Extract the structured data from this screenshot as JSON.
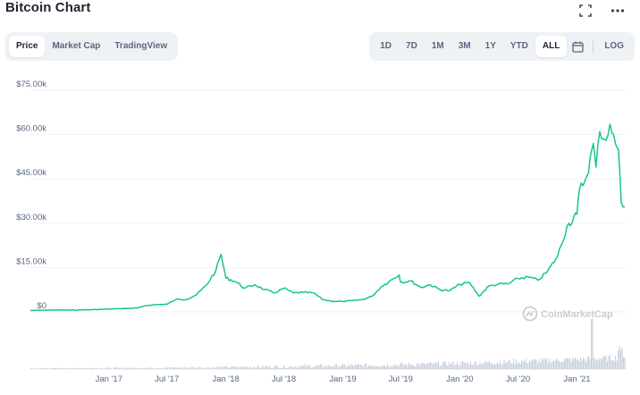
{
  "header": {
    "title": "Bitcoin Chart"
  },
  "tabs": [
    {
      "label": "Price",
      "active": true
    },
    {
      "label": "Market Cap",
      "active": false
    },
    {
      "label": "TradingView",
      "active": false
    }
  ],
  "ranges": [
    {
      "label": "1D",
      "active": false
    },
    {
      "label": "7D",
      "active": false
    },
    {
      "label": "1M",
      "active": false
    },
    {
      "label": "3M",
      "active": false
    },
    {
      "label": "1Y",
      "active": false
    },
    {
      "label": "YTD",
      "active": false
    },
    {
      "label": "ALL",
      "active": true
    }
  ],
  "log_label": "LOG",
  "watermark": "CoinMarketCap",
  "icons": {
    "fullscreen": "fullscreen-icon",
    "more": "more-icon",
    "calendar": "calendar-icon",
    "logo": "coinmarketcap-logo-icon"
  },
  "colors": {
    "line": "#16c784",
    "volume": "#c8d0dc",
    "grid": "#eff2f5"
  },
  "chart_data": {
    "type": "line",
    "title": "Bitcoin Chart",
    "y_tick_labels": [
      "$0",
      "$15.00k",
      "$30.00k",
      "$45.00k",
      "$60.00k",
      "$75.00k"
    ],
    "y_ticks": [
      0,
      15000,
      30000,
      45000,
      60000,
      75000
    ],
    "ylim": [
      0,
      80000
    ],
    "x_tick_labels": [
      "Jan '17",
      "Jul '17",
      "Jan '18",
      "Jul '18",
      "Jan '19",
      "Jul '19",
      "Jan '20",
      "Jul '20",
      "Jan '21"
    ],
    "x_ticks": [
      "2017-01",
      "2017-07",
      "2018-01",
      "2018-07",
      "2019-01",
      "2019-07",
      "2020-01",
      "2020-07",
      "2021-01"
    ],
    "grid": true,
    "series": [
      {
        "dates": [
          "2016-05",
          "2016-07",
          "2016-09",
          "2016-11",
          "2017-01",
          "2017-02",
          "2017-03",
          "2017-04",
          "2017-05",
          "2017-06",
          "2017-07",
          "2017-08",
          "2017-09",
          "2017-10",
          "2017-11",
          "2017-12",
          "2017-12-17",
          "2018-01",
          "2018-02",
          "2018-03",
          "2018-04",
          "2018-05",
          "2018-06",
          "2018-07",
          "2018-08",
          "2018-09",
          "2018-10",
          "2018-11",
          "2018-12",
          "2019-01",
          "2019-02",
          "2019-03",
          "2019-04",
          "2019-05",
          "2019-06",
          "2019-06-26",
          "2019-07",
          "2019-08",
          "2019-09",
          "2019-10",
          "2019-11",
          "2019-12",
          "2020-01",
          "2020-02",
          "2020-03",
          "2020-04",
          "2020-05",
          "2020-06",
          "2020-07",
          "2020-08",
          "2020-09",
          "2020-10",
          "2020-11",
          "2020-12",
          "2021-01",
          "2021-01-08",
          "2021-02",
          "2021-02-21",
          "2021-03",
          "2021-03-13",
          "2021-04",
          "2021-04-14",
          "2021-05",
          "2021-05-10",
          "2021-05-19",
          "2021-05-30"
        ],
        "values": [
          450,
          650,
          600,
          730,
          950,
          1100,
          1150,
          1350,
          2200,
          2500,
          2600,
          4300,
          4200,
          5800,
          9000,
          14000,
          19500,
          11500,
          10200,
          8000,
          9200,
          7600,
          6400,
          8000,
          6400,
          6600,
          6400,
          4100,
          3600,
          3500,
          3800,
          4100,
          5200,
          8500,
          10800,
          12500,
          10000,
          10500,
          8300,
          9200,
          7500,
          7200,
          9300,
          9900,
          5300,
          8700,
          9400,
          9500,
          11300,
          11800,
          10700,
          13700,
          18700,
          29000,
          33000,
          41000,
          46000,
          57000,
          49000,
          61000,
          58000,
          63500,
          57000,
          55000,
          37000,
          35500
        ]
      }
    ]
  }
}
